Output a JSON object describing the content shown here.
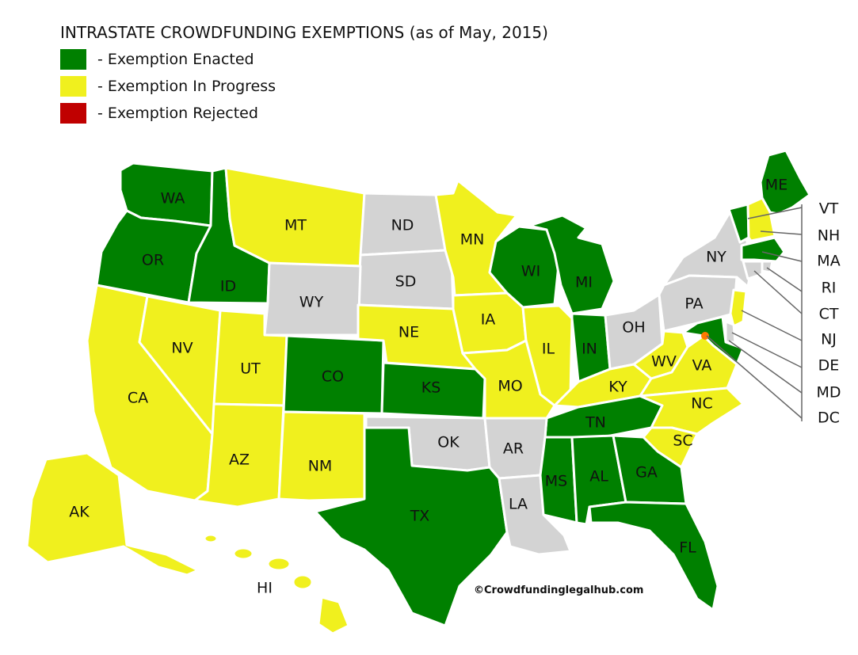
{
  "title": "INTRASTATE CROWDFUNDING EXEMPTIONS (as of May, 2015)",
  "colors": {
    "enacted": "#008000",
    "in_progress": "#f0f01e",
    "rejected": "#c00000",
    "none": "#d3d3d3",
    "marker": "#ff7a00"
  },
  "legend": [
    {
      "status": "enacted",
      "label": "- Exemption Enacted"
    },
    {
      "status": "in_progress",
      "label": "- Exemption In Progress"
    },
    {
      "status": "rejected",
      "label": "- Exemption Rejected"
    }
  ],
  "states": {
    "WA": "enacted",
    "OR": "enacted",
    "ID": "enacted",
    "MT": "in_progress",
    "ND": "none",
    "SD": "none",
    "WY": "none",
    "MN": "in_progress",
    "WI": "enacted",
    "MI": "enacted",
    "NY": "none",
    "ME": "enacted",
    "CA": "in_progress",
    "NV": "in_progress",
    "UT": "in_progress",
    "CO": "enacted",
    "NE": "in_progress",
    "IA": "in_progress",
    "IL": "in_progress",
    "IN": "enacted",
    "OH": "none",
    "PA": "none",
    "KS": "enacted",
    "MO": "in_progress",
    "KY": "in_progress",
    "WV": "in_progress",
    "VA": "in_progress",
    "AZ": "in_progress",
    "NM": "in_progress",
    "OK": "none",
    "AR": "none",
    "TN": "enacted",
    "NC": "in_progress",
    "SC": "in_progress",
    "TX": "enacted",
    "LA": "none",
    "MS": "enacted",
    "AL": "enacted",
    "GA": "enacted",
    "FL": "enacted",
    "AK": "in_progress",
    "HI": "in_progress",
    "VT": "enacted",
    "NH": "in_progress",
    "MA": "enacted",
    "RI": "none",
    "CT": "none",
    "NJ": "in_progress",
    "DE": "none",
    "MD": "enacted",
    "DC": "none"
  },
  "state_labels": {
    "WA": "WA",
    "OR": "OR",
    "ID": "ID",
    "MT": "MT",
    "ND": "ND",
    "SD": "SD",
    "WY": "WY",
    "MN": "MN",
    "WI": "WI",
    "MI": "MI",
    "NY": "NY",
    "ME": "ME",
    "CA": "CA",
    "NV": "NV",
    "UT": "UT",
    "CO": "CO",
    "NE": "NE",
    "IA": "IA",
    "IL": "IL",
    "IN": "IN",
    "OH": "OH",
    "PA": "PA",
    "KS": "KS",
    "MO": "MO",
    "KY": "KY",
    "WV": "WV",
    "VA": "VA",
    "AZ": "AZ",
    "NM": "NM",
    "OK": "OK",
    "AR": "AR",
    "TN": "TN",
    "NC": "NC",
    "SC": "SC",
    "TX": "TX",
    "LA": "LA",
    "MS": "MS",
    "AL": "AL",
    "GA": "GA",
    "FL": "FL",
    "AK": "AK",
    "HI": "HI"
  },
  "callouts": [
    "VT",
    "NH",
    "MA",
    "RI",
    "CT",
    "NJ",
    "DE",
    "MD",
    "DC"
  ],
  "credit": "©Crowdfundinglegalhub.com"
}
